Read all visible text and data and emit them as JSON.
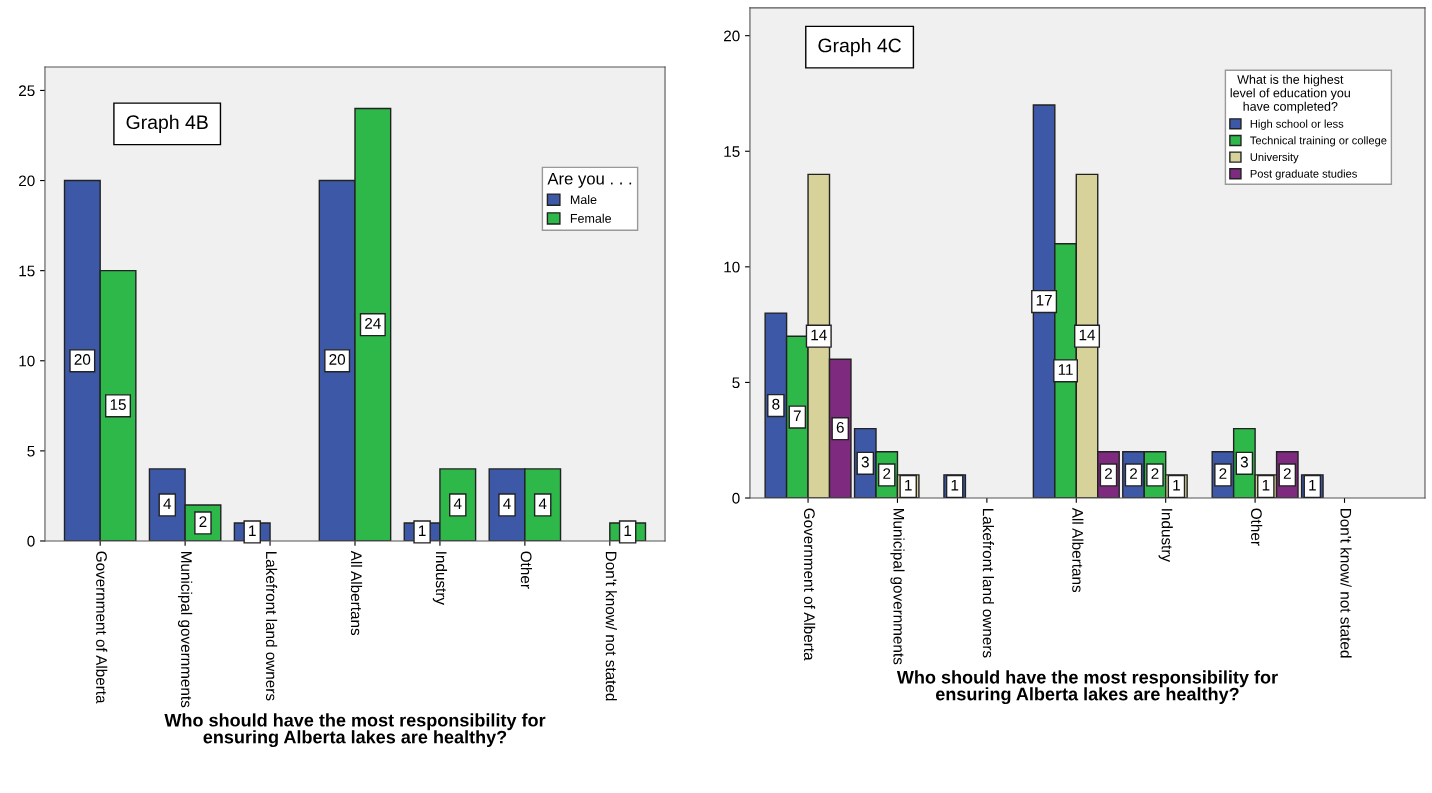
{
  "chart_data": [
    {
      "type": "bar",
      "annotations": [
        "Graph 4B"
      ],
      "xlabel": "Who should have the most responsibility for\nensuring Alberta lakes are healthy?",
      "legend_title": "Are you . . .",
      "legend": "top right",
      "data_labels": true,
      "grid": false,
      "categories": [
        "Government of Alberta",
        "Municipal governments",
        "Lakefront land owners",
        "All Albertans",
        "Industry",
        "Other",
        "Don't know/ not stated"
      ],
      "ylim": [
        0,
        26.3
      ],
      "yticks": [
        0,
        5,
        10,
        15,
        20,
        25
      ],
      "series": [
        {
          "name": "Male",
          "color": "#3e58a8",
          "values": [
            20,
            4,
            1,
            20,
            1,
            4,
            null
          ]
        },
        {
          "name": "Female",
          "color": "#2eb84a",
          "values": [
            15,
            2,
            null,
            24,
            4,
            4,
            1
          ]
        }
      ]
    },
    {
      "type": "bar",
      "annotations": [
        "Graph 4C"
      ],
      "xlabel": "Who should have the most responsibility for\nensuring Alberta lakes are healthy?",
      "legend_title": "What is the highest\nlevel of education you\nhave completed?",
      "legend": "top right",
      "data_labels": true,
      "grid": false,
      "categories": [
        "Government of Alberta",
        "Municipal governments",
        "Lakefront land owners",
        "All Albertans",
        "Industry",
        "Other",
        "Don't know/ not stated"
      ],
      "ylim": [
        0,
        21.2
      ],
      "yticks": [
        0,
        5,
        10,
        15,
        20
      ],
      "series": [
        {
          "name": "High school or less",
          "color": "#3e58a8",
          "values": [
            8,
            3,
            1,
            17,
            2,
            2,
            1
          ]
        },
        {
          "name": "Technical training or college",
          "color": "#2eb84a",
          "values": [
            7,
            2,
            null,
            11,
            2,
            3,
            null
          ]
        },
        {
          "name": "University",
          "color": "#d6d29a",
          "values": [
            14,
            1,
            null,
            14,
            1,
            1,
            null
          ]
        },
        {
          "name": "Post graduate studies",
          "color": "#7e2a7e",
          "values": [
            6,
            null,
            null,
            2,
            null,
            2,
            null
          ]
        }
      ]
    }
  ]
}
